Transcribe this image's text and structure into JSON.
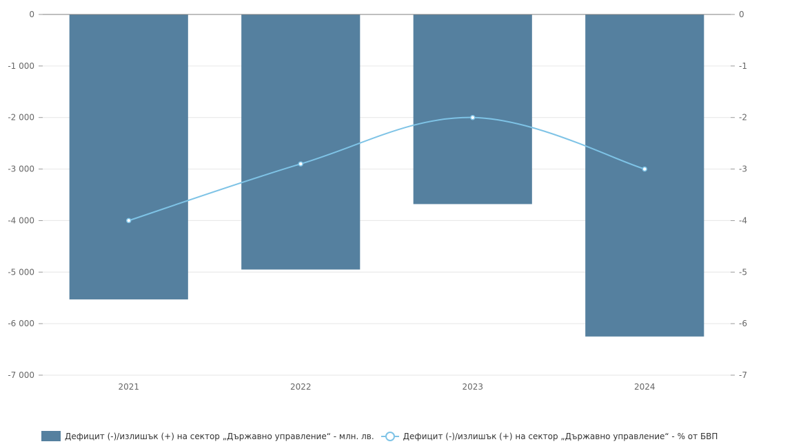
{
  "chart_data": {
    "type": "bar",
    "categories": [
      "2021",
      "2022",
      "2023",
      "2024"
    ],
    "series": [
      {
        "name": "Дефицит (-)/излишък (+) на сектор „Държавно управление“ - млн. лв.",
        "type": "bar",
        "axis": "left",
        "values": [
          -5530,
          -4950,
          -3680,
          -6250
        ],
        "color": "#55809f"
      },
      {
        "name": "Дефицит (-)/излишък (+) на сектор „Държавно управление“ - % от БВП",
        "type": "line",
        "axis": "right",
        "values": [
          -4,
          -2.9,
          -2,
          -3
        ],
        "color": "#7ec3e6"
      }
    ],
    "y_left": {
      "range": [
        -7000,
        0
      ],
      "ticks": [
        0,
        -1000,
        -2000,
        -3000,
        -4000,
        -5000,
        -6000,
        -7000
      ],
      "tick_labels": [
        "0",
        "-1 000",
        "-2 000",
        "-3 000",
        "-4 000",
        "-5 000",
        "-6 000",
        "-7 000"
      ]
    },
    "y_right": {
      "range": [
        -7,
        0
      ],
      "ticks": [
        0,
        -1,
        -2,
        -3,
        -4,
        -5,
        -6,
        -7
      ],
      "tick_labels": [
        "0",
        "-1",
        "-2",
        "-3",
        "-4",
        "-5",
        "-6",
        "-7"
      ]
    },
    "grid": true,
    "legend_position": "bottom"
  },
  "legend": {
    "bar_label": "Дефицит (-)/излишък (+) на сектор „Държавно управление“ - млн. лв.",
    "line_label": "Дефицит (-)/излишък (+) на сектор „Държавно управление“ - % от БВП"
  }
}
